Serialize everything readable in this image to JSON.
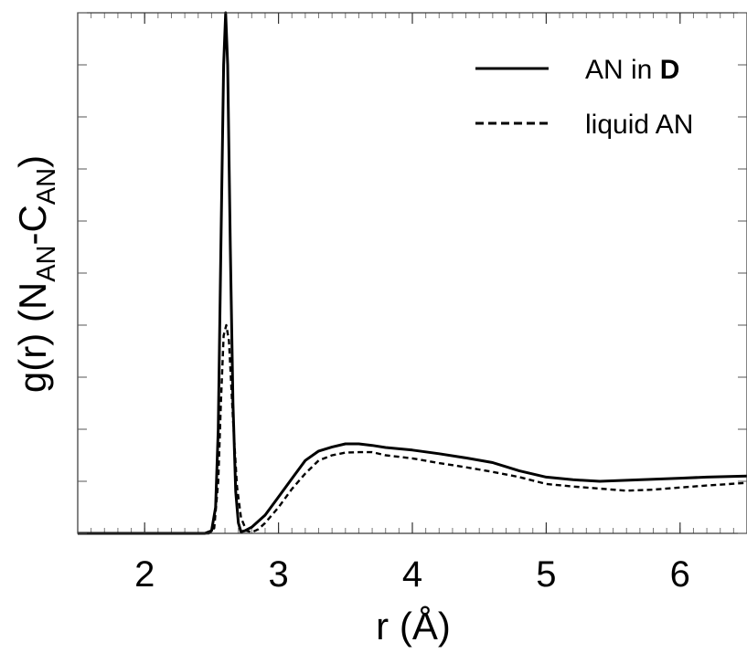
{
  "chart_data": {
    "type": "line",
    "xlabel": "r (Å)",
    "ylabel": {
      "main": "g(r) (N",
      "sub1": "AN",
      "mid": "-C",
      "sub2": "AN",
      "close": ")"
    },
    "xlim": [
      1.5,
      6.5
    ],
    "ylim": [
      0,
      10
    ],
    "x_ticks": [
      2,
      3,
      4,
      5,
      6
    ],
    "x_tick_labels": [
      "2",
      "3",
      "4",
      "5",
      "6"
    ],
    "x_minor_step": 0.1,
    "y_tick_step": 1,
    "y_tick_labels_shown": false,
    "grid": false,
    "legend_position": "top-right",
    "series": [
      {
        "name": "AN in D",
        "name_parts": [
          "AN in ",
          "D"
        ],
        "style": "solid",
        "color": "#000000",
        "points": [
          [
            1.5,
            0
          ],
          [
            2.45,
            0
          ],
          [
            2.5,
            0.05
          ],
          [
            2.53,
            0.5
          ],
          [
            2.55,
            2.0
          ],
          [
            2.57,
            5.5
          ],
          [
            2.59,
            9.0
          ],
          [
            2.605,
            10.0
          ],
          [
            2.62,
            9.0
          ],
          [
            2.64,
            5.5
          ],
          [
            2.66,
            2.5
          ],
          [
            2.68,
            0.8
          ],
          [
            2.7,
            0.2
          ],
          [
            2.72,
            0.03
          ],
          [
            2.75,
            0.05
          ],
          [
            2.8,
            0.12
          ],
          [
            2.9,
            0.35
          ],
          [
            3.0,
            0.7
          ],
          [
            3.1,
            1.05
          ],
          [
            3.2,
            1.4
          ],
          [
            3.3,
            1.58
          ],
          [
            3.4,
            1.66
          ],
          [
            3.5,
            1.72
          ],
          [
            3.6,
            1.72
          ],
          [
            3.7,
            1.69
          ],
          [
            3.8,
            1.65
          ],
          [
            4.0,
            1.6
          ],
          [
            4.2,
            1.53
          ],
          [
            4.4,
            1.45
          ],
          [
            4.6,
            1.36
          ],
          [
            4.8,
            1.2
          ],
          [
            5.0,
            1.08
          ],
          [
            5.2,
            1.03
          ],
          [
            5.4,
            1.0
          ],
          [
            5.6,
            1.02
          ],
          [
            5.8,
            1.04
          ],
          [
            6.0,
            1.06
          ],
          [
            6.2,
            1.08
          ],
          [
            6.5,
            1.1
          ]
        ]
      },
      {
        "name": "liquid AN",
        "name_parts": [
          "liquid AN",
          ""
        ],
        "style": "dashed",
        "color": "#000000",
        "points": [
          [
            1.5,
            0
          ],
          [
            2.48,
            0
          ],
          [
            2.52,
            0.1
          ],
          [
            2.55,
            1.0
          ],
          [
            2.57,
            2.5
          ],
          [
            2.59,
            3.8
          ],
          [
            2.61,
            4.0
          ],
          [
            2.63,
            3.7
          ],
          [
            2.66,
            2.2
          ],
          [
            2.69,
            0.9
          ],
          [
            2.72,
            0.3
          ],
          [
            2.76,
            0.05
          ],
          [
            2.8,
            0.02
          ],
          [
            2.85,
            0.08
          ],
          [
            2.9,
            0.2
          ],
          [
            3.0,
            0.5
          ],
          [
            3.1,
            0.85
          ],
          [
            3.2,
            1.15
          ],
          [
            3.3,
            1.4
          ],
          [
            3.4,
            1.5
          ],
          [
            3.5,
            1.55
          ],
          [
            3.6,
            1.56
          ],
          [
            3.7,
            1.56
          ],
          [
            3.8,
            1.5
          ],
          [
            4.0,
            1.44
          ],
          [
            4.2,
            1.35
          ],
          [
            4.4,
            1.27
          ],
          [
            4.6,
            1.18
          ],
          [
            4.8,
            1.08
          ],
          [
            5.0,
            0.95
          ],
          [
            5.2,
            0.9
          ],
          [
            5.4,
            0.86
          ],
          [
            5.6,
            0.82
          ],
          [
            5.8,
            0.84
          ],
          [
            6.0,
            0.88
          ],
          [
            6.2,
            0.92
          ],
          [
            6.5,
            0.97
          ]
        ]
      }
    ]
  }
}
